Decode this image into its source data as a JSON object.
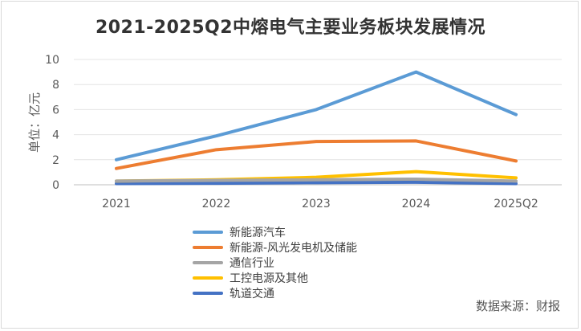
{
  "chart_data": {
    "type": "line",
    "title": "2021-2025Q2中熔电气主要业务板块发展情况",
    "ylabel": "单位：亿元",
    "xlabel": "",
    "categories": [
      "2021",
      "2022",
      "2023",
      "2024",
      "2025Q2"
    ],
    "ylim": [
      0,
      10
    ],
    "yticks": [
      0,
      2,
      4,
      6,
      8,
      10
    ],
    "grid": true,
    "legend_position": "bottom-left",
    "series": [
      {
        "name": "新能源汽车",
        "color": "#5b9bd5",
        "values": [
          2.0,
          3.9,
          6.0,
          9.0,
          5.6
        ]
      },
      {
        "name": "新能源-风光发电机及储能",
        "color": "#ed7d31",
        "values": [
          1.3,
          2.8,
          3.45,
          3.5,
          1.9
        ]
      },
      {
        "name": "通信行业",
        "color": "#a5a5a5",
        "values": [
          0.3,
          0.35,
          0.4,
          0.45,
          0.3
        ]
      },
      {
        "name": "工控电源及其他",
        "color": "#ffc000",
        "values": [
          0.3,
          0.4,
          0.6,
          1.05,
          0.55
        ]
      },
      {
        "name": "轨道交通",
        "color": "#4472c4",
        "values": [
          0.1,
          0.12,
          0.17,
          0.2,
          0.1
        ]
      }
    ],
    "source": "数据来源：财报"
  }
}
